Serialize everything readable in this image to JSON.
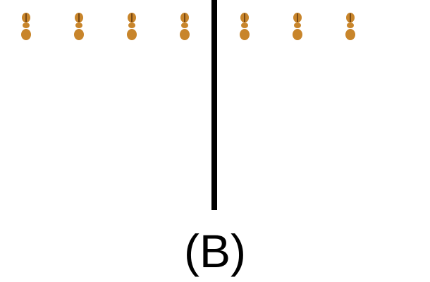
{
  "figure": {
    "label": "(B)",
    "left_group": {
      "organism_icon": "insect-icon",
      "count": 4
    },
    "right_group": {
      "organism_icon": "insect-icon",
      "count": 3
    },
    "colors": {
      "organism_body": "#c8852b",
      "organism_stripe": "#7a4a14",
      "barrier": "#000000",
      "label": "#000000",
      "background": "#ffffff"
    }
  }
}
